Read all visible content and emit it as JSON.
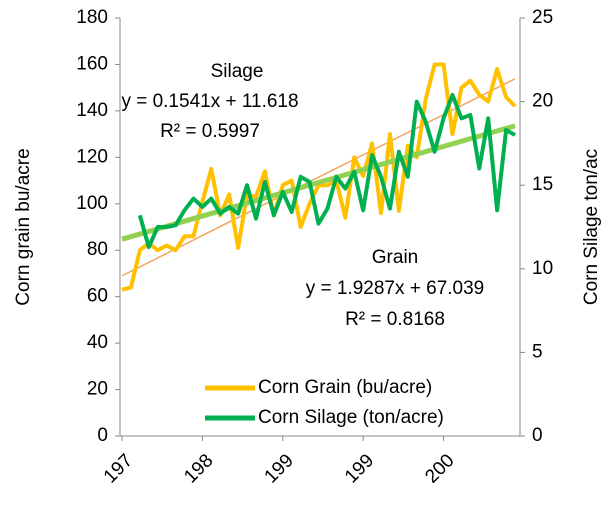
{
  "chart_data": {
    "type": "line",
    "categories": [
      "197",
      null,
      null,
      null,
      null,
      null,
      null,
      null,
      null,
      "198",
      null,
      null,
      null,
      null,
      null,
      null,
      null,
      null,
      "199",
      null,
      null,
      null,
      null,
      null,
      null,
      null,
      null,
      "199",
      null,
      null,
      null,
      null,
      null,
      null,
      null,
      null,
      "200",
      null,
      null,
      null,
      null,
      null,
      null,
      null,
      null
    ],
    "series": [
      {
        "name": "Corn Grain (bu/acre)",
        "color": "#FFC000",
        "axis": "y",
        "values": [
          63,
          64,
          80,
          83,
          80,
          82,
          80,
          86,
          86,
          101,
          115,
          95,
          104,
          81,
          104,
          103,
          114,
          95,
          108,
          110,
          90,
          100,
          108,
          108,
          110,
          94,
          120,
          112,
          126,
          96,
          130,
          97,
          125,
          120,
          145,
          160,
          160,
          130,
          150,
          153,
          147,
          144,
          158,
          146,
          142
        ],
        "trend": {
          "color": "#F4A460",
          "start": 68.97,
          "end": 153.83
        }
      },
      {
        "name": "Corn Silage (ton/acre)",
        "color": "#00B050",
        "axis": "y2",
        "values": [
          null,
          null,
          13.2,
          11.3,
          12.5,
          12.5,
          12.6,
          13.5,
          14.2,
          13.7,
          14.2,
          13.3,
          13.7,
          13.3,
          15,
          13,
          15.2,
          13.2,
          14.6,
          13.4,
          15.5,
          15.2,
          12.7,
          13.6,
          15.5,
          14.8,
          15.8,
          13.5,
          16.8,
          15.5,
          13.6,
          17,
          15.5,
          20,
          18.8,
          17,
          19,
          20.4,
          19,
          19.2,
          16,
          19,
          13.5,
          18.3,
          18
        ],
        "trend": {
          "color": "#92D050",
          "start": 11.77,
          "end": 18.55
        }
      }
    ],
    "ylabel": "Corn grain bu/acre",
    "y2label": "Corn Silage ton/ac",
    "ylim": [
      0,
      180
    ],
    "yticks": [
      0,
      20,
      40,
      60,
      80,
      100,
      120,
      140,
      160,
      180
    ],
    "y2lim": [
      0,
      25
    ],
    "y2ticks": [
      0,
      5,
      10,
      15,
      20,
      25
    ],
    "legend": "bottom",
    "annotations": [
      {
        "lines": [
          "Silage",
          "y = 0.1541x + 11.618",
          "R² = 0.5997"
        ]
      },
      {
        "lines": [
          "Grain",
          "y = 1.9287x + 67.039",
          "R² = 0.8168"
        ]
      }
    ]
  }
}
